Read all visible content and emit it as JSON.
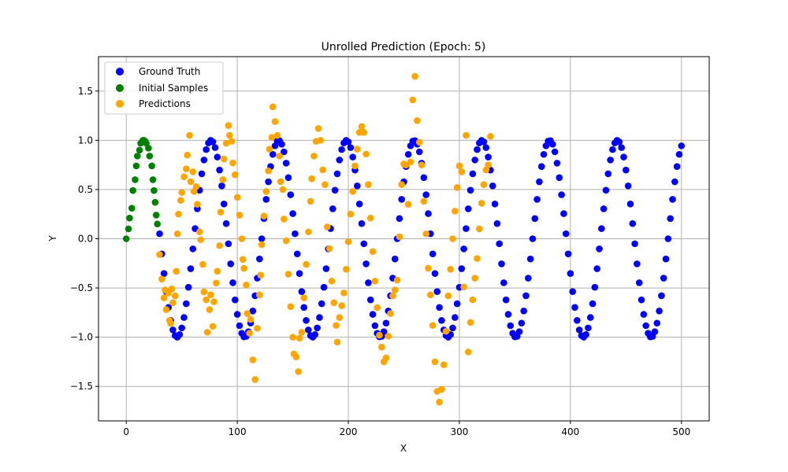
{
  "chart_data": {
    "type": "scatter",
    "title": "Unrolled Prediction (Epoch: 5)",
    "xlabel": "X",
    "ylabel": "Y",
    "xlim": [
      -25,
      525
    ],
    "ylim": [
      -1.85,
      1.85
    ],
    "xticks": [
      0,
      100,
      200,
      300,
      400,
      500
    ],
    "yticks": [
      -1.5,
      -1.0,
      -0.5,
      0.0,
      0.5,
      1.0,
      1.5
    ],
    "xtick_labels": [
      "0",
      "100",
      "200",
      "300",
      "400",
      "500"
    ],
    "ytick_labels": [
      "−1.5",
      "−1.0",
      "−0.5",
      "0.0",
      "0.5",
      "1.0",
      "1.5"
    ],
    "grid": true,
    "legend_position": "top-left",
    "series": [
      {
        "name": "Ground Truth",
        "color": "#0000ff",
        "function": "sin",
        "period": 61,
        "x_start": 30,
        "x_end": 500,
        "x_step": 2,
        "x": [],
        "y": []
      },
      {
        "name": "Initial Samples",
        "color": "#008000",
        "x": [
          0,
          2,
          3,
          5,
          6,
          8,
          9,
          10,
          12,
          13,
          15,
          16,
          17,
          18,
          20,
          21,
          23,
          24,
          25,
          26,
          27,
          28
        ],
        "y": [
          0.0,
          0.1,
          0.21,
          0.31,
          0.49,
          0.6,
          0.74,
          0.84,
          0.9,
          0.97,
          1.0,
          1.0,
          0.99,
          0.97,
          0.92,
          0.84,
          0.74,
          0.6,
          0.49,
          0.37,
          0.24,
          0.15
        ]
      },
      {
        "name": "Predictions",
        "color": "#ffa500",
        "x": [
          30,
          32,
          34,
          35,
          36,
          38,
          39,
          40,
          41,
          42,
          44,
          45,
          46,
          47,
          49,
          50,
          52,
          54,
          55,
          57,
          58,
          60,
          61,
          63,
          64,
          66,
          67,
          69,
          70,
          72,
          73,
          75,
          76,
          78,
          79,
          81,
          82,
          84,
          85,
          87,
          88,
          90,
          92,
          93,
          95,
          96,
          98,
          100,
          102,
          104,
          105,
          106,
          108,
          109,
          111,
          112,
          114,
          116,
          118,
          120,
          121,
          122,
          124,
          126,
          128,
          129,
          131,
          132,
          134,
          136,
          138,
          139,
          141,
          142,
          144,
          146,
          148,
          150,
          151,
          153,
          155,
          156,
          158,
          160,
          162,
          164,
          166,
          167,
          169,
          171,
          173,
          175,
          177,
          179,
          181,
          183,
          185,
          187,
          189,
          190,
          192,
          194,
          196,
          198,
          200,
          202,
          204,
          206,
          208,
          210,
          212,
          214,
          216,
          218,
          220,
          222,
          224,
          226,
          228,
          230,
          232,
          234,
          236,
          238,
          240,
          242,
          244,
          246,
          248,
          250,
          252,
          254,
          256,
          258,
          260,
          262,
          264,
          266,
          268,
          270,
          272,
          274,
          276,
          278,
          280,
          282,
          284,
          286,
          288,
          290,
          292,
          294,
          296,
          298,
          300,
          302,
          304,
          306,
          308,
          310,
          312,
          314,
          316,
          318,
          320,
          322,
          324,
          326,
          328
        ],
        "y": [
          -0.16,
          -0.41,
          -0.6,
          -0.52,
          -0.72,
          -0.55,
          -0.83,
          -0.86,
          -0.51,
          -0.65,
          -0.58,
          -0.33,
          0.05,
          0.25,
          0.39,
          0.47,
          0.63,
          0.71,
          0.85,
          1.05,
          0.58,
          0.68,
          0.48,
          0.53,
          0.35,
          0.07,
          -0.01,
          -0.26,
          -0.54,
          -0.62,
          -0.95,
          -0.72,
          -0.57,
          -0.89,
          -0.64,
          -0.45,
          -0.33,
          -0.07,
          0.27,
          0.6,
          0.81,
          0.97,
          1.15,
          1.05,
          0.99,
          0.77,
          0.65,
          0.42,
          0.24,
          0.0,
          -0.21,
          -0.3,
          -0.47,
          -0.76,
          -0.96,
          -0.82,
          -1.23,
          -1.43,
          -0.91,
          -0.57,
          -0.37,
          -0.06,
          0.23,
          0.48,
          0.69,
          0.91,
          1.03,
          1.34,
          1.19,
          1.05,
          0.84,
          0.58,
          0.5,
          0.2,
          -0.02,
          -0.36,
          -0.69,
          -1.0,
          -1.17,
          -1.2,
          -1.35,
          -1.01,
          -0.95,
          -0.6,
          -0.26,
          0.07,
          0.38,
          0.61,
          0.84,
          0.99,
          1.12,
          1.0,
          0.7,
          0.55,
          0.12,
          -0.1,
          -0.43,
          -0.65,
          -0.88,
          -1.05,
          -0.8,
          -0.68,
          -0.55,
          -0.31,
          -0.03,
          0.25,
          0.48,
          0.74,
          0.91,
          1.08,
          1.14,
          1.08,
          0.86,
          0.55,
          0.21,
          -0.13,
          -0.43,
          -0.7,
          -0.98,
          -1.1,
          -1.25,
          -1.21,
          -0.99,
          -0.76,
          -0.58,
          -0.52,
          -0.42,
          0.02,
          0.55,
          0.76,
          0.75,
          0.35,
          0.78,
          1.41,
          1.65,
          1.2,
          0.98,
          0.75,
          0.38,
          0.05,
          -0.3,
          -0.57,
          -0.88,
          -1.25,
          -1.55,
          -1.66,
          -1.53,
          -1.28,
          -0.94,
          -0.58,
          -0.31,
          0.0,
          0.28,
          0.52,
          0.74,
          0.68,
          -0.49,
          1.05,
          -1.15,
          -0.85,
          -0.62,
          -0.4,
          -0.2,
          0.1,
          0.36,
          0.55,
          0.7,
          0.75,
          1.04
        ]
      }
    ]
  }
}
